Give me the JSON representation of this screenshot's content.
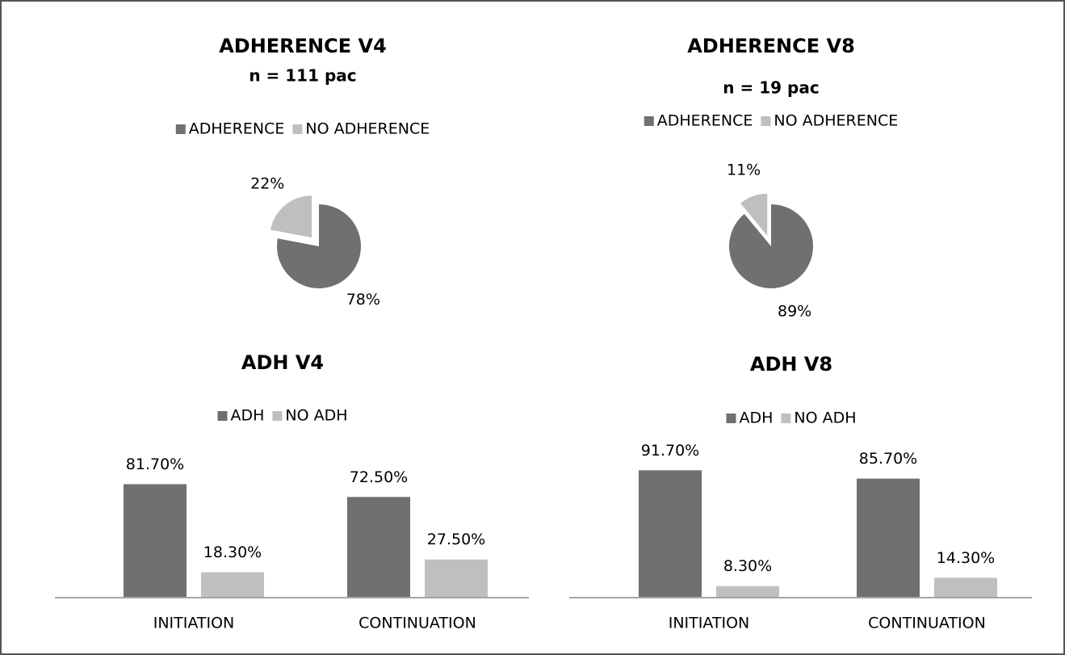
{
  "chart_data": [
    {
      "type": "pie",
      "title": "ADHERENCE V4",
      "subtitle": "n = 111 pac",
      "categories": [
        "ADHERENCE",
        "NO ADHERENCE"
      ],
      "values": [
        78,
        22
      ],
      "value_labels": [
        "78%",
        "22%"
      ],
      "colors": [
        "#707070",
        "#bfbfbf"
      ]
    },
    {
      "type": "pie",
      "title": "ADHERENCE V8",
      "subtitle": "n = 19 pac",
      "categories": [
        "ADHERENCE",
        "NO ADHERENCE"
      ],
      "values": [
        89,
        11
      ],
      "value_labels": [
        "89%",
        "11%"
      ],
      "colors": [
        "#707070",
        "#bfbfbf"
      ]
    },
    {
      "type": "bar",
      "title": "ADH V4",
      "categories": [
        "INITIATION",
        "CONTINUATION"
      ],
      "series": [
        {
          "name": "ADH",
          "color": "#707070",
          "values": [
            81.7,
            72.5
          ],
          "value_labels": [
            "81.70%",
            "72.50%"
          ]
        },
        {
          "name": "NO ADH",
          "color": "#bfbfbf",
          "values": [
            18.3,
            27.5
          ],
          "value_labels": [
            "18.30%",
            "27.50%"
          ]
        }
      ],
      "ylim": [
        0,
        100
      ]
    },
    {
      "type": "bar",
      "title": "ADH V8",
      "categories": [
        "INITIATION",
        "CONTINUATION"
      ],
      "series": [
        {
          "name": "ADH",
          "color": "#707070",
          "values": [
            91.7,
            85.7
          ],
          "value_labels": [
            "91.70%",
            "85.70%"
          ]
        },
        {
          "name": "NO ADH",
          "color": "#bfbfbf",
          "values": [
            8.3,
            14.3
          ],
          "value_labels": [
            "8.30%",
            "14.30%"
          ]
        }
      ],
      "ylim": [
        0,
        100
      ]
    }
  ]
}
